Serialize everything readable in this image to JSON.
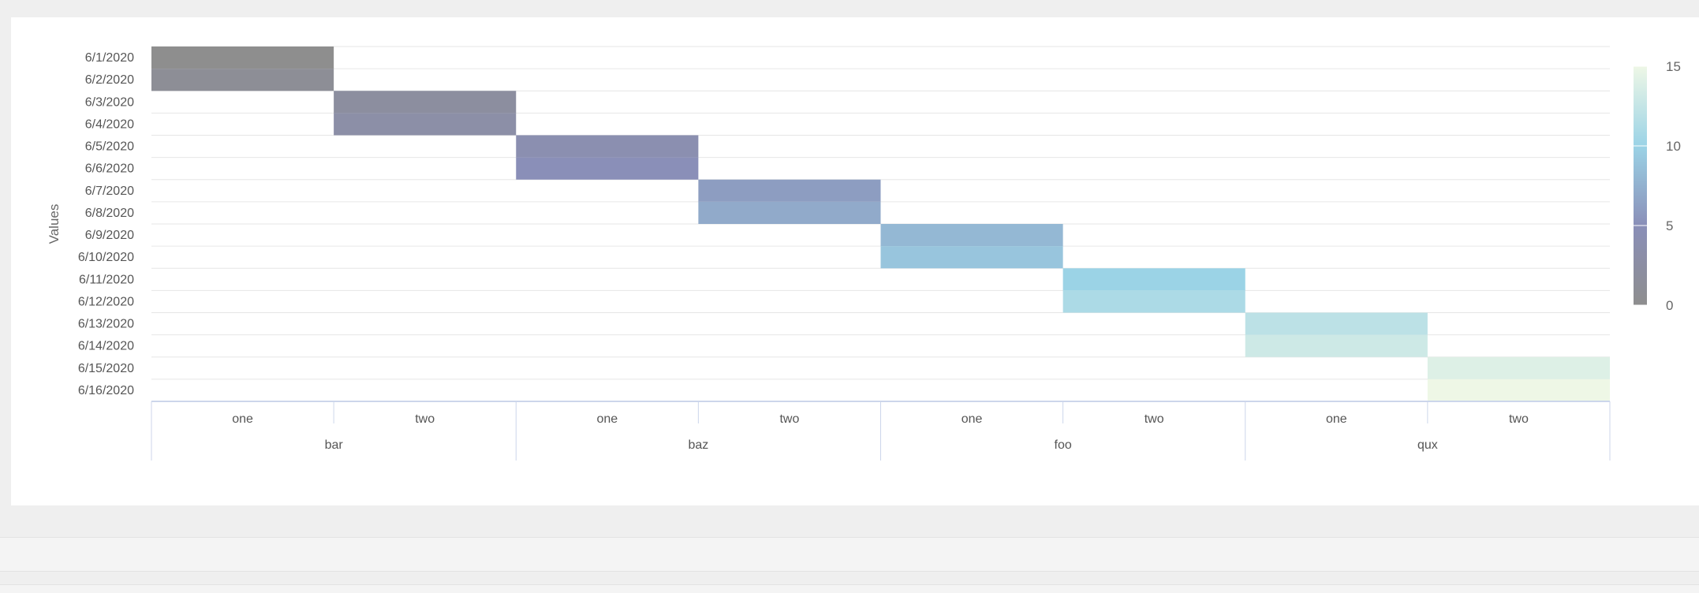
{
  "chart_data": {
    "type": "heatmap",
    "ylabel": "Values",
    "y_categories": [
      "6/1/2020",
      "6/2/2020",
      "6/3/2020",
      "6/4/2020",
      "6/5/2020",
      "6/6/2020",
      "6/7/2020",
      "6/8/2020",
      "6/9/2020",
      "6/10/2020",
      "6/11/2020",
      "6/12/2020",
      "6/13/2020",
      "6/14/2020",
      "6/15/2020",
      "6/16/2020"
    ],
    "x_categories": [
      {
        "group": "bar",
        "sub": "one"
      },
      {
        "group": "bar",
        "sub": "two"
      },
      {
        "group": "baz",
        "sub": "one"
      },
      {
        "group": "baz",
        "sub": "two"
      },
      {
        "group": "foo",
        "sub": "one"
      },
      {
        "group": "foo",
        "sub": "two"
      },
      {
        "group": "qux",
        "sub": "one"
      },
      {
        "group": "qux",
        "sub": "two"
      }
    ],
    "x_groups": [
      "bar",
      "baz",
      "foo",
      "qux"
    ],
    "cells": [
      {
        "x": 0,
        "y": 0,
        "value": 0
      },
      {
        "x": 0,
        "y": 1,
        "value": 1
      },
      {
        "x": 1,
        "y": 2,
        "value": 2
      },
      {
        "x": 1,
        "y": 3,
        "value": 3
      },
      {
        "x": 2,
        "y": 4,
        "value": 4
      },
      {
        "x": 2,
        "y": 5,
        "value": 5
      },
      {
        "x": 3,
        "y": 6,
        "value": 6
      },
      {
        "x": 3,
        "y": 7,
        "value": 7
      },
      {
        "x": 4,
        "y": 8,
        "value": 8
      },
      {
        "x": 4,
        "y": 9,
        "value": 9
      },
      {
        "x": 5,
        "y": 10,
        "value": 10
      },
      {
        "x": 5,
        "y": 11,
        "value": 11
      },
      {
        "x": 6,
        "y": 12,
        "value": 12
      },
      {
        "x": 6,
        "y": 13,
        "value": 13
      },
      {
        "x": 7,
        "y": 14,
        "value": 14
      },
      {
        "x": 7,
        "y": 15,
        "value": 15
      }
    ],
    "color_scale": {
      "range": [
        0,
        15
      ],
      "ticks": [
        0,
        5,
        10,
        15
      ],
      "stops": [
        "#8e8e8e",
        "#8a8fb8",
        "#9bd3e6",
        "#eef7e6"
      ]
    },
    "grid": true
  }
}
